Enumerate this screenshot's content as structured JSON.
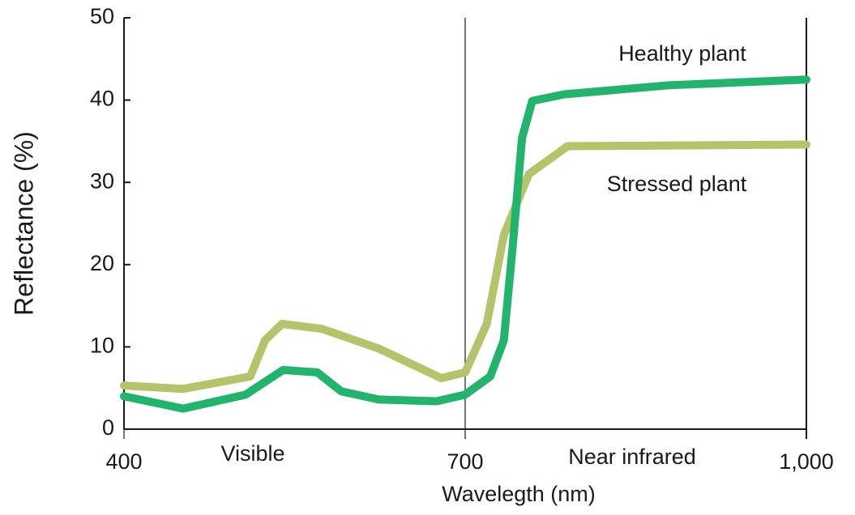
{
  "chart_data": {
    "type": "line",
    "x_label": "Wavelegth  (nm)",
    "y_label": "Reflectance (%)",
    "annotations": [
      "Visible",
      "Near infrared",
      "Healthy plant",
      "Stressed plant"
    ],
    "xlim": [
      400,
      1000
    ],
    "xticks": [
      400,
      700,
      {
        "value": 1000,
        "label": "1,000"
      }
    ],
    "ylim": [
      0,
      50
    ],
    "yticks": [
      0,
      10,
      20,
      30,
      40,
      50
    ],
    "series": [
      {
        "name": "Healthy plant",
        "color": "#22b46c",
        "x": [
          400,
          452,
          507,
          540,
          570,
          591,
          624,
          675,
          700,
          722,
          734,
          742,
          750,
          759,
          787,
          879,
          1000
        ],
        "values": [
          4,
          2.5,
          4.2,
          7.2,
          6.9,
          4.6,
          3.6,
          3.4,
          4.2,
          6.4,
          10.8,
          22.6,
          35.4,
          39.9,
          40.7,
          41.8,
          42.5
        ]
      },
      {
        "name": "Stressed plant",
        "color": "#b5c46a",
        "x": [
          400,
          452,
          511,
          524,
          539,
          574,
          624,
          679,
          700,
          719,
          734,
          756,
          790,
          1000
        ],
        "values": [
          5.3,
          4.9,
          6.4,
          10.8,
          12.8,
          12.2,
          9.8,
          6.2,
          6.9,
          12.8,
          23.6,
          31.0,
          34.4,
          34.6
        ]
      }
    ]
  }
}
